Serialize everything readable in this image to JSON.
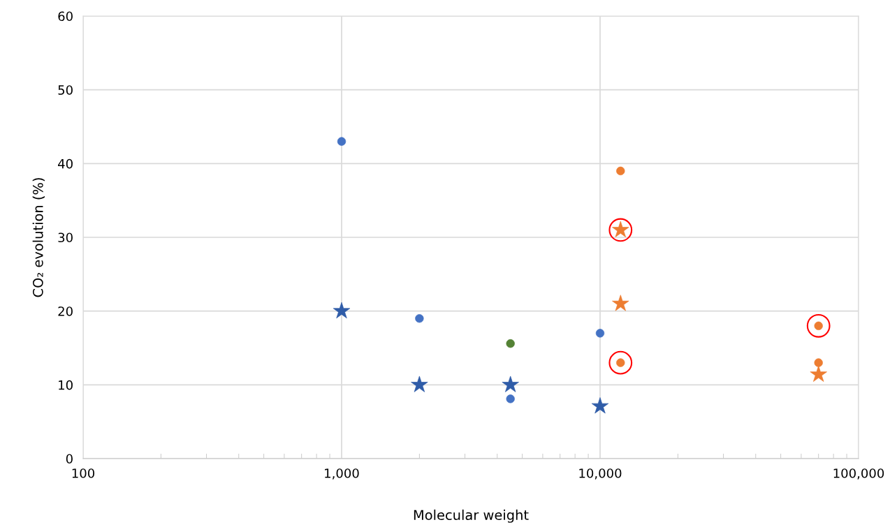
{
  "chart_data": {
    "type": "scatter",
    "xlabel": "Molecular weight",
    "ylabel": "CO₂ evolution (%)",
    "log": "x",
    "grid": true,
    "xlim": [
      100,
      100000
    ],
    "xticks": [
      100,
      {
        "value": 1000,
        "label": "1,000"
      },
      {
        "value": 10000,
        "label": "10,000"
      },
      {
        "value": 100000,
        "label": "100,000"
      }
    ],
    "ylim": [
      0,
      60
    ],
    "yticks": [
      0,
      10,
      20,
      30,
      40,
      50,
      60
    ],
    "series": [
      {
        "color": "#4472c4",
        "marker": "circle",
        "x": [
          1000,
          2000,
          4500,
          10000
        ],
        "values": [
          43,
          19,
          8.1,
          17
        ]
      },
      {
        "color": "#2f5ca8",
        "marker": "star",
        "x": [
          1000,
          2000,
          4500,
          10000
        ],
        "values": [
          20,
          10,
          10,
          7.1
        ]
      },
      {
        "color": "#548235",
        "marker": "circle",
        "x": [
          4500
        ],
        "values": [
          15.6
        ]
      },
      {
        "color": "#ed7d31",
        "marker": "circle",
        "x": [
          12000,
          12000,
          70000,
          70000
        ],
        "values": [
          39,
          13,
          18,
          13
        ]
      },
      {
        "color": "#ed7d31",
        "marker": "star",
        "x": [
          12000,
          12000,
          70000
        ],
        "values": [
          31,
          21,
          11.4
        ]
      },
      {
        "color": "#ff0000",
        "marker": "circle",
        "x": [
          12000,
          12000,
          70000
        ],
        "values": [
          31,
          13,
          18
        ]
      }
    ]
  }
}
